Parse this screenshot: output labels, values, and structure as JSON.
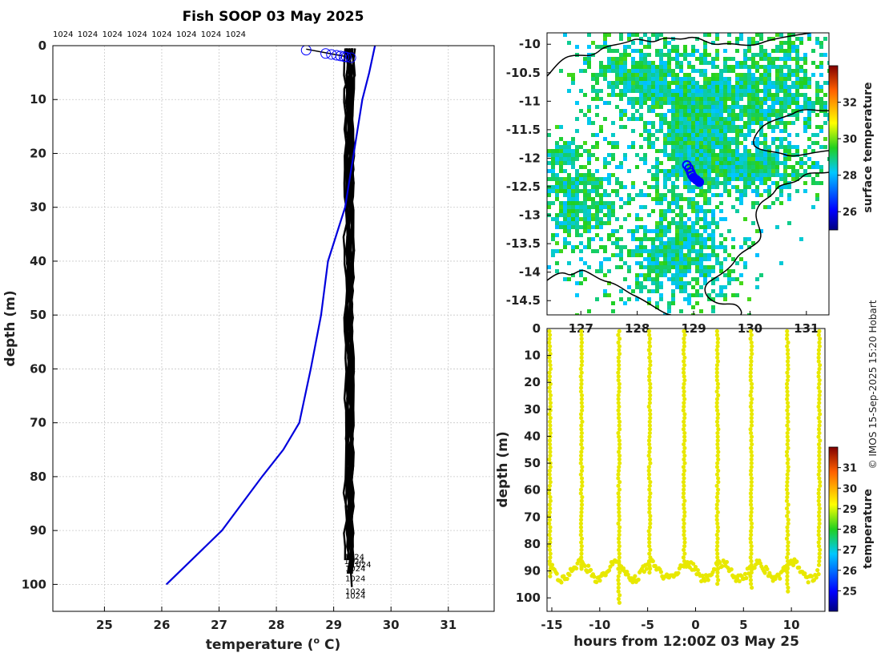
{
  "title": "Fish SOOP 03 May 2025",
  "credit": "© IMOS 15-Sep-2025 15:20 Hobart",
  "profile_ids": [
    "1024",
    "1024",
    "1024",
    "1024",
    "1024",
    "1024",
    "1024",
    "1024"
  ],
  "colors": {
    "axis": "#000000",
    "grid": "#c8c8c8",
    "climatology": "#0000dd",
    "profiles": "#000000",
    "markers": "#0000ff",
    "section": "#e8e800"
  },
  "chart_data": [
    {
      "type": "line",
      "name": "profile-plot",
      "xlabel": "temperature (",
      "xlabel_sup": "o",
      "xlabel_end": " C)",
      "ylabel": "depth (m)",
      "xlim": [
        24.1,
        31.8
      ],
      "ylim": [
        105,
        0
      ],
      "xticks": [
        "25",
        "26",
        "27",
        "28",
        "29",
        "30",
        "31"
      ],
      "yticks": [
        "0",
        "10",
        "20",
        "30",
        "40",
        "50",
        "60",
        "70",
        "80",
        "90",
        "100"
      ],
      "climatology": {
        "temp": [
          29.72,
          29.62,
          29.5,
          29.35,
          29.2,
          28.9,
          28.78,
          28.6,
          28.4,
          28.12,
          27.75,
          27.05,
          26.08
        ],
        "depth": [
          0,
          5,
          10,
          20,
          30,
          40,
          50,
          60,
          70,
          75,
          80,
          90,
          100
        ]
      },
      "profile_bottom_labels": [
        {
          "text": "1024",
          "temp": 29.18,
          "depth": 94.8
        },
        {
          "text": "1024",
          "temp": 29.18,
          "depth": 95.6
        },
        {
          "text": "1024",
          "temp": 29.3,
          "depth": 96.2
        },
        {
          "text": "1024",
          "temp": 29.2,
          "depth": 97.0
        },
        {
          "text": "1024",
          "temp": 29.2,
          "depth": 98.8
        },
        {
          "text": "1024",
          "temp": 29.2,
          "depth": 101.2
        },
        {
          "text": "1024",
          "temp": 29.2,
          "depth": 102.0
        }
      ],
      "surface_markers_temp": [
        28.52,
        28.86,
        28.96,
        29.05,
        29.12,
        29.18,
        29.22,
        29.3
      ]
    },
    {
      "type": "heatmap",
      "name": "sst-map",
      "xlim": [
        126.4,
        131.4
      ],
      "ylim": [
        -14.75,
        -9.8
      ],
      "yticks": [
        "-10",
        "-10.5",
        "-11",
        "-11.5",
        "-12",
        "-12.5",
        "-13",
        "-13.5",
        "-14",
        "-14.5"
      ],
      "xticks": [
        "127",
        "128",
        "129",
        "130",
        "131"
      ],
      "colorbar_label": "surface temperature",
      "colorbar_ticks": [
        "26",
        "28",
        "30",
        "32"
      ],
      "colorbar_range": [
        25,
        34
      ],
      "track_lon": [
        128.88,
        128.92,
        128.95,
        128.97,
        129.0,
        129.05,
        129.1
      ],
      "track_lat": [
        -12.12,
        -12.18,
        -12.25,
        -12.3,
        -12.34,
        -12.38,
        -12.42
      ]
    },
    {
      "type": "scatter",
      "name": "depth-section",
      "xlabel": "hours from 12:00Z 03 May 25",
      "ylabel": "depth (m)",
      "xlim": [
        -15.5,
        13.5
      ],
      "ylim": [
        105,
        0
      ],
      "xticks": [
        "-15",
        "-10",
        "-5",
        "0",
        "5",
        "10"
      ],
      "yticks": [
        "0",
        "10",
        "20",
        "30",
        "40",
        "50",
        "60",
        "70",
        "80",
        "90",
        "100"
      ],
      "colorbar_label": "temperature",
      "colorbar_ticks": [
        "25",
        "26",
        "27",
        "28",
        "29",
        "30",
        "31"
      ],
      "colorbar_range": [
        24,
        32
      ],
      "casts_hours": [
        -15.2,
        -11.9,
        -8.0,
        -4.8,
        -1.2,
        2.3,
        5.8,
        9.6,
        12.9
      ],
      "bottom_depths": [
        93,
        90,
        103,
        91,
        89,
        95,
        97,
        98,
        88
      ]
    }
  ]
}
